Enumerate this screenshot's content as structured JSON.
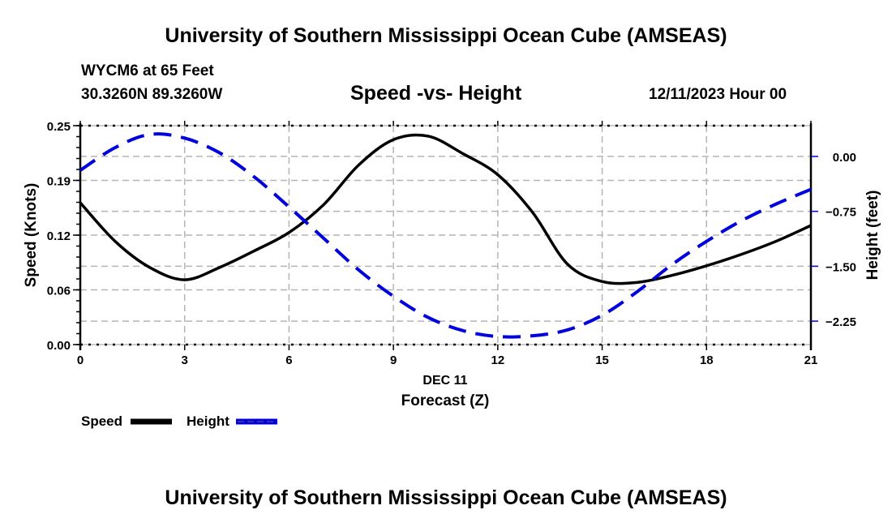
{
  "header": {
    "title": "University of Southern Mississippi Ocean Cube (AMSEAS)",
    "station": "WYCM6 at 65 Feet",
    "coords": "30.3260N  89.3260W",
    "date": "12/11/2023 Hour 00"
  },
  "footer": {
    "title": "University of Southern Mississippi Ocean Cube (AMSEAS)"
  },
  "colors": {
    "speed": "#000000",
    "height": "#0000dd",
    "grid": "#b4b4b4"
  },
  "chart_data": {
    "type": "line",
    "title": "Speed -vs- Height",
    "xlabel": "Forecast (Z)",
    "xlabel_date": "DEC 11",
    "ylabel": "Speed (Knots)",
    "y2label": "Height (feet)",
    "xlim": [
      0,
      21
    ],
    "ylim": [
      0,
      0.25
    ],
    "y2lim": [
      -2.57,
      0.42
    ],
    "x_ticks": [
      0,
      3,
      6,
      9,
      12,
      15,
      18,
      21
    ],
    "x_tick_labels": [
      "0",
      "3",
      "6",
      "9",
      "12",
      "15",
      "18",
      "21"
    ],
    "y_ticks": [
      0.0,
      0.0625,
      0.125,
      0.1875,
      0.25
    ],
    "y_tick_labels": [
      "0.00",
      "0.06",
      "0.12",
      "0.19",
      "0.25"
    ],
    "y2_ticks": [
      0.0,
      -0.75,
      -1.5,
      -2.25
    ],
    "y2_tick_labels": [
      "0.00",
      "−0.75",
      "−1.50",
      "−2.25"
    ],
    "grid": true,
    "legend": {
      "placement": "bottom-left",
      "items": [
        {
          "label": "Speed",
          "style": "solid"
        },
        {
          "label": "Height",
          "style": "dashed"
        }
      ]
    },
    "x": [
      0,
      1,
      2,
      3,
      4,
      5,
      6,
      7,
      8,
      9,
      10,
      11,
      12,
      13,
      14,
      15,
      16,
      17,
      18,
      19,
      20,
      21
    ],
    "series": [
      {
        "name": "Speed",
        "axis": "left",
        "values": [
          0.162,
          0.118,
          0.088,
          0.074,
          0.088,
          0.107,
          0.128,
          0.16,
          0.205,
          0.234,
          0.238,
          0.218,
          0.194,
          0.151,
          0.092,
          0.072,
          0.071,
          0.079,
          0.09,
          0.103,
          0.118,
          0.136
        ]
      },
      {
        "name": "Height",
        "axis": "right",
        "values": [
          -0.19,
          0.12,
          0.3,
          0.25,
          0.05,
          -0.28,
          -0.69,
          -1.12,
          -1.55,
          -1.91,
          -2.2,
          -2.38,
          -2.46,
          -2.45,
          -2.37,
          -2.17,
          -1.85,
          -1.48,
          -1.16,
          -0.88,
          -0.65,
          -0.45
        ]
      }
    ]
  }
}
